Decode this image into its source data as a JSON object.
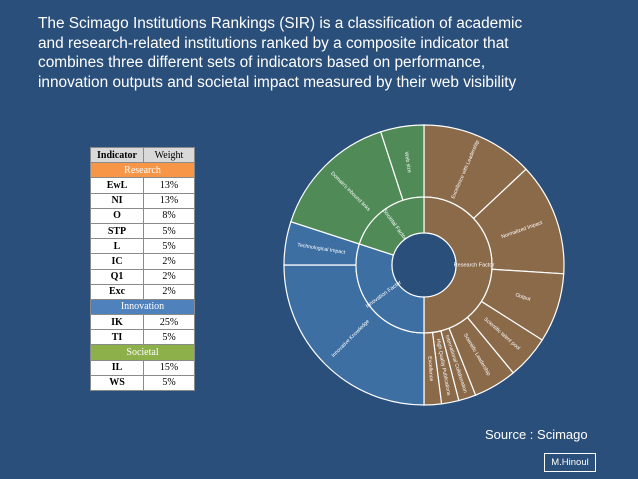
{
  "title_lines": [
    "The Scimago Institutions Rankings (SIR) is a classification of academic",
    "and research-related institutions  ranked by a composite indicator that",
    "combines three different sets of indicators based on performance,",
    "innovation outputs and societal impact measured by their web visibility"
  ],
  "table": {
    "header": {
      "indicator": "Indicator",
      "weight": "Weight"
    },
    "sections": [
      {
        "name": "Research",
        "color": "#f79646",
        "rows": [
          [
            "EwL",
            "13%"
          ],
          [
            "NI",
            "13%"
          ],
          [
            "O",
            "8%"
          ],
          [
            "STP",
            "5%"
          ],
          [
            "L",
            "5%"
          ],
          [
            "IC",
            "2%"
          ],
          [
            "Q1",
            "2%"
          ],
          [
            "Exc",
            "2%"
          ]
        ]
      },
      {
        "name": "Innovation",
        "color": "#4f81bd",
        "rows": [
          [
            "IK",
            "25%"
          ],
          [
            "TI",
            "5%"
          ]
        ]
      },
      {
        "name": "Societal",
        "color": "#8db04b",
        "rows": [
          [
            "IL",
            "15%"
          ],
          [
            "WS",
            "5%"
          ]
        ]
      }
    ]
  },
  "sunburst": {
    "colors": {
      "research": "#8b6a4a",
      "innovation": "#3d6fa3",
      "societal": "#4f8a57",
      "border": "#ffffff"
    },
    "inner": [
      {
        "label": "Research Factor",
        "pct": 50,
        "group": "research"
      },
      {
        "label": "Innovation Factor",
        "pct": 30,
        "group": "innovation"
      },
      {
        "label": "Societal Factor",
        "pct": 20,
        "group": "societal"
      }
    ],
    "outer": [
      {
        "label": "Excellence with Leadership",
        "pct": 13,
        "group": "research"
      },
      {
        "label": "Normalized Impact",
        "pct": 13,
        "group": "research"
      },
      {
        "label": "Output",
        "pct": 8,
        "group": "research"
      },
      {
        "label": "Scientific talent pool",
        "pct": 5,
        "group": "research"
      },
      {
        "label": "Scientific Leadership",
        "pct": 5,
        "group": "research"
      },
      {
        "label": "International Collaboration",
        "pct": 2,
        "group": "research"
      },
      {
        "label": "High Quality Publications",
        "pct": 2,
        "group": "research"
      },
      {
        "label": "Excellence",
        "pct": 2,
        "group": "research"
      },
      {
        "label": "Innovative Knowledge",
        "pct": 25,
        "group": "innovation"
      },
      {
        "label": "Technological Impact",
        "pct": 5,
        "group": "innovation"
      },
      {
        "label": "Domain's inbound links",
        "pct": 15,
        "group": "societal"
      },
      {
        "label": "Web size",
        "pct": 5,
        "group": "societal"
      }
    ]
  },
  "source": "Source : Scimago",
  "author": "M.Hinoul"
}
